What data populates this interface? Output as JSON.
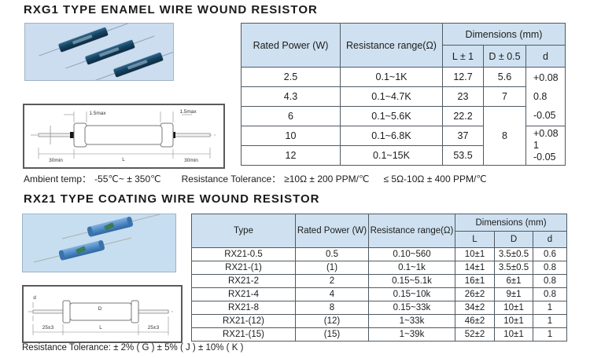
{
  "palette": {
    "header_blue": "#cfe1f0",
    "photo_bg_1": "#ccddef",
    "photo_bg_2": "#c7ddf0",
    "resistor_dark_blue": "#16425f",
    "resistor_light_blue": "#4a86c4",
    "table_border": "#4f5a63"
  },
  "section1": {
    "title": "RXG1 TYPE ENAMEL WIRE WOUND RESISTOR",
    "table": {
      "col_power": "Rated Power (W)",
      "col_range": "Resistance range(Ω)",
      "col_dimensions": "Dimensions (mm)",
      "col_l": "L ± 1",
      "col_d_upper": "D ± 0.5",
      "col_d_lower": "d",
      "rows": [
        {
          "power": "2.5",
          "range": "0.1~1K",
          "l": "12.7",
          "d_upper": "5.6"
        },
        {
          "power": "4.3",
          "range": "0.1~4.7K",
          "l": "23",
          "d_upper": "7"
        },
        {
          "power": "6",
          "range": "0.1~5.6K",
          "l": "22.2"
        },
        {
          "power": "10",
          "range": "0.1~6.8K",
          "l": "37"
        },
        {
          "power": "12",
          "range": "0.1~15K",
          "l": "53.5"
        }
      ],
      "d_upper_merged": "8",
      "d_tol_a": {
        "plus": "+0.08",
        "nominal": "0.8",
        "minus": "-0.05"
      },
      "d_tol_b": {
        "plus": "+0.08",
        "nominal": "1",
        "minus": "-0.05"
      }
    },
    "drawing": {
      "cap_tol_left": "1.5max",
      "cap_tol_right": "1.5max",
      "lead_min_left": "30min",
      "body_len": "L",
      "lead_min_right": "30min"
    },
    "notes": {
      "ambient_label": "Ambient temp：",
      "ambient_value": "-55℃~ ± 350℃",
      "tolerance_label": "Resistance Tolerance：",
      "tolerance_value_1": "≥10Ω ± 200 PPM/℃",
      "tolerance_value_2": "≤ 5Ω-10Ω ± 400 PPM/℃"
    }
  },
  "section2": {
    "title": "RX21 TYPE COATING WIRE WOUND RESISTOR",
    "table": {
      "col_type": "Type",
      "col_power": "Rated Power (W)",
      "col_range": "Resistance range(Ω)",
      "col_dimensions": "Dimensions (mm)",
      "col_l": "L",
      "col_d_upper": "D",
      "col_d_lower": "d",
      "rows": [
        {
          "type": "RX21-0.5",
          "power": "0.5",
          "range": "0.10~560",
          "l": "10±1",
          "d_upper": "3.5±0.5",
          "d_lower": "0.6"
        },
        {
          "type": "RX21-(1)",
          "power": "(1)",
          "range": "0.1~1k",
          "l": "14±1",
          "d_upper": "3.5±0.5",
          "d_lower": "0.8"
        },
        {
          "type": "RX21-2",
          "power": "2",
          "range": "0.15~5.1k",
          "l": "16±1",
          "d_upper": "6±1",
          "d_lower": "0.8"
        },
        {
          "type": "RX21-4",
          "power": "4",
          "range": "0.15~10k",
          "l": "26±2",
          "d_upper": "9±1",
          "d_lower": "0.8"
        },
        {
          "type": "RX21-8",
          "power": "8",
          "range": "0.15~33k",
          "l": "34±2",
          "d_upper": "10±1",
          "d_lower": "1"
        },
        {
          "type": "RX21-(12)",
          "power": "(12)",
          "range": "1~33k",
          "l": "46±2",
          "d_upper": "10±1",
          "d_lower": "1"
        },
        {
          "type": "RX21-(15)",
          "power": "(15)",
          "range": "1~39k",
          "l": "52±2",
          "d_upper": "10±1",
          "d_lower": "1"
        }
      ]
    },
    "drawing": {
      "body_dia": "D",
      "body_len": "L",
      "lead_len_left": "25±3",
      "lead_len_right": "25±3",
      "lead_dia": "d"
    },
    "note": "Resistance Tolerance: ± 2% ( G )  ± 5% ( J )  ± 10% ( K )"
  }
}
